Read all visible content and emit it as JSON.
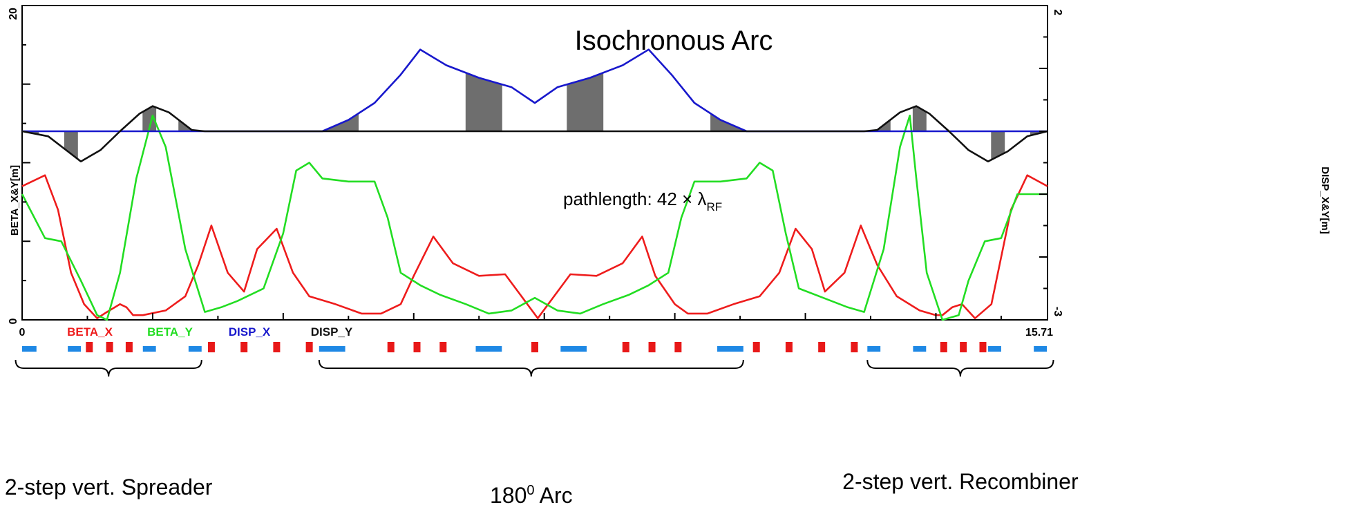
{
  "chart_data": {
    "type": "line",
    "title": "Isochronous Arc",
    "annotation": {
      "text": "pathlength: 42 × λ",
      "sub": "RF"
    },
    "left_axis": {
      "label": "BETA_X&Y[m]",
      "ticks": [
        "0",
        "20"
      ],
      "ylim": [
        0,
        20
      ]
    },
    "right_axis": {
      "label": "DISP_X&Y[m]",
      "ticks": [
        "-3",
        "2"
      ],
      "ylim": [
        -3,
        2
      ]
    },
    "x_axis": {
      "xlim": [
        0,
        15.71
      ],
      "tick_labels": [
        "0",
        "15.71"
      ]
    },
    "legend": [
      {
        "name": "BETA_X",
        "color": "#ee1c1c"
      },
      {
        "name": "BETA_Y",
        "color": "#22dd22"
      },
      {
        "name": "DISP_X",
        "color": "#1818cc"
      },
      {
        "name": "DISP_Y",
        "color": "#111111"
      }
    ],
    "series": [
      {
        "name": "BETA_X",
        "axis": "left",
        "color": "#ee1c1c",
        "x": [
          0,
          0.35,
          0.55,
          0.75,
          0.95,
          1.15,
          1.3,
          1.5,
          1.6,
          1.7,
          1.85,
          2.2,
          2.5,
          2.7,
          2.9,
          3.15,
          3.4,
          3.6,
          3.9,
          4.15,
          4.4,
          4.8,
          5.2,
          5.5,
          5.8,
          6.0,
          6.3,
          6.6,
          7.0,
          7.4,
          7.9,
          8.4,
          8.8,
          9.2,
          9.5,
          9.7,
          10.0,
          10.2,
          10.5,
          10.9,
          11.3,
          11.6,
          11.85,
          12.1,
          12.3,
          12.6,
          12.85,
          13.1,
          13.4,
          13.75,
          14.0,
          14.1,
          14.25,
          14.4,
          14.6,
          14.85,
          15.15,
          15.4,
          15.71
        ],
        "y": [
          8.5,
          9.2,
          7.0,
          3.0,
          1.0,
          0.1,
          0.5,
          1.0,
          0.8,
          0.3,
          0.3,
          0.6,
          1.5,
          3.5,
          6.0,
          3.0,
          1.8,
          4.5,
          5.8,
          3.0,
          1.5,
          1.0,
          0.4,
          0.4,
          1.0,
          2.8,
          5.3,
          3.6,
          2.8,
          2.9,
          0.1,
          2.9,
          2.8,
          3.6,
          5.3,
          2.8,
          1.0,
          0.4,
          0.4,
          1.0,
          1.5,
          3.0,
          5.8,
          4.5,
          1.8,
          3.0,
          6.0,
          3.5,
          1.5,
          0.6,
          0.3,
          0.3,
          0.8,
          1.0,
          0.1,
          1.0,
          7.0,
          9.2,
          8.5
        ]
      },
      {
        "name": "BETA_Y",
        "axis": "left",
        "color": "#22dd22",
        "x": [
          0,
          0.35,
          0.6,
          0.9,
          1.15,
          1.3,
          1.5,
          1.75,
          2.0,
          2.2,
          2.5,
          2.8,
          3.05,
          3.3,
          3.7,
          4.0,
          4.2,
          4.4,
          4.6,
          5.0,
          5.4,
          5.6,
          5.8,
          6.1,
          6.4,
          6.8,
          7.15,
          7.5,
          7.855,
          8.2,
          8.55,
          8.9,
          9.3,
          9.6,
          9.9,
          10.1,
          10.3,
          10.7,
          11.1,
          11.3,
          11.5,
          11.7,
          11.9,
          12.4,
          12.65,
          12.9,
          13.2,
          13.45,
          13.6,
          13.7,
          13.86,
          14.1,
          14.35,
          14.5,
          14.75,
          15.0,
          15.25,
          15.5,
          15.71
        ],
        "y": [
          8.0,
          5.2,
          5.0,
          2.5,
          0.3,
          0.0,
          3.0,
          9.0,
          13.0,
          11.0,
          4.5,
          0.5,
          0.8,
          1.2,
          2.0,
          5.5,
          9.5,
          10.0,
          9.0,
          8.8,
          8.8,
          6.5,
          3.0,
          2.2,
          1.6,
          1.0,
          0.4,
          0.6,
          1.4,
          0.6,
          0.4,
          1.0,
          1.6,
          2.2,
          3.0,
          6.5,
          8.8,
          8.8,
          9.0,
          10.0,
          9.5,
          5.5,
          2.0,
          1.2,
          0.8,
          0.5,
          4.5,
          11.0,
          13.0,
          9.0,
          3.0,
          0.0,
          0.3,
          2.5,
          5.0,
          5.2,
          8.0,
          8.0,
          8.0
        ]
      },
      {
        "name": "DISP_X",
        "axis": "right",
        "color": "#1818cc",
        "x": [
          0,
          4.6,
          5.0,
          5.4,
          5.8,
          6.1,
          6.5,
          7.0,
          7.5,
          7.855,
          8.2,
          8.7,
          9.2,
          9.6,
          9.95,
          10.3,
          10.7,
          11.1,
          15.71
        ],
        "y": [
          0,
          0,
          0.18,
          0.45,
          0.9,
          1.3,
          1.05,
          0.85,
          0.7,
          0.45,
          0.7,
          0.85,
          1.05,
          1.3,
          0.9,
          0.45,
          0.18,
          0,
          0
        ]
      },
      {
        "name": "DISP_Y",
        "axis": "right",
        "color": "#111111",
        "x": [
          0,
          0.4,
          0.7,
          0.9,
          1.2,
          1.5,
          1.8,
          2.0,
          2.25,
          2.6,
          2.8,
          12.9,
          13.1,
          13.45,
          13.7,
          13.9,
          14.2,
          14.5,
          14.8,
          15.1,
          15.4,
          15.71
        ],
        "y": [
          0,
          -0.08,
          -0.32,
          -0.48,
          -0.3,
          0,
          0.28,
          0.4,
          0.3,
          0.02,
          0,
          0,
          0.02,
          0.3,
          0.4,
          0.28,
          0,
          -0.3,
          -0.48,
          -0.32,
          -0.08,
          0
        ]
      }
    ],
    "shaded_regions": [
      {
        "series": "DISP_Y",
        "x0": 0.05,
        "x1": 0.25
      },
      {
        "series": "DISP_Y",
        "x0": 0.65,
        "x1": 0.85
      },
      {
        "series": "DISP_Y",
        "x0": 1.85,
        "x1": 2.05
      },
      {
        "series": "DISP_Y",
        "x0": 2.4,
        "x1": 2.6
      },
      {
        "series": "DISP_X",
        "x0": 4.6,
        "x1": 5.15
      },
      {
        "series": "DISP_X",
        "x0": 6.8,
        "x1": 7.35
      },
      {
        "series": "DISP_X",
        "x0": 8.35,
        "x1": 8.9
      },
      {
        "series": "DISP_X",
        "x0": 10.55,
        "x1": 11.1
      },
      {
        "series": "DISP_Y",
        "x0": 13.1,
        "x1": 13.3
      },
      {
        "series": "DISP_Y",
        "x0": 13.65,
        "x1": 13.85
      },
      {
        "series": "DISP_Y",
        "x0": 14.85,
        "x1": 15.05
      },
      {
        "series": "DISP_Y",
        "x0": 15.45,
        "x1": 15.65
      }
    ],
    "lattice": {
      "dipoles": [
        {
          "x0": 0.0,
          "x1": 0.22
        },
        {
          "x0": 0.7,
          "x1": 0.9
        },
        {
          "x0": 1.85,
          "x1": 2.05
        },
        {
          "x0": 2.55,
          "x1": 2.75
        },
        {
          "x0": 4.55,
          "x1": 4.95
        },
        {
          "x0": 6.95,
          "x1": 7.35
        },
        {
          "x0": 8.25,
          "x1": 8.65
        },
        {
          "x0": 10.65,
          "x1": 11.05
        },
        {
          "x0": 12.95,
          "x1": 13.15
        },
        {
          "x0": 13.65,
          "x1": 13.85
        },
        {
          "x0": 14.8,
          "x1": 15.0
        },
        {
          "x0": 15.5,
          "x1": 15.7
        }
      ],
      "quads": [
        1.03,
        1.34,
        1.64,
        2.9,
        3.4,
        3.9,
        4.4,
        5.65,
        6.05,
        6.45,
        7.855,
        9.25,
        9.65,
        10.05,
        11.25,
        11.75,
        12.25,
        12.75,
        14.12,
        14.42,
        14.72
      ]
    },
    "sections": [
      {
        "label": "2-step vert.  Spreader",
        "x0": -0.1,
        "x1": 2.75
      },
      {
        "label": "180",
        "sup": "0",
        "suffix": " Arc",
        "x0": 4.55,
        "x1": 11.05
      },
      {
        "label": "2-step vert.  Recombiner",
        "x0": 12.95,
        "x1": 15.8
      }
    ]
  }
}
